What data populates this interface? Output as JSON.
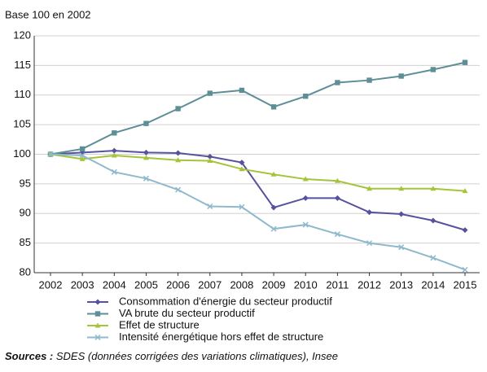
{
  "chart_data": {
    "type": "line",
    "subtitle": "Base 100 en 2002",
    "categories": [
      "2002",
      "2003",
      "2004",
      "2005",
      "2006",
      "2007",
      "2008",
      "2009",
      "2010",
      "2011",
      "2012",
      "2013",
      "2014",
      "2015"
    ],
    "series": [
      {
        "name": "Consommation d'énergie du secteur productif",
        "color": "#56529e",
        "marker": "diamond",
        "values": [
          100,
          100.3,
          100.6,
          100.3,
          100.2,
          99.6,
          98.6,
          91.0,
          92.6,
          92.6,
          90.2,
          89.9,
          88.8,
          87.2
        ]
      },
      {
        "name": "VA brute du secteur productif",
        "color": "#5e8e96",
        "marker": "square",
        "values": [
          100,
          100.9,
          103.6,
          105.2,
          107.7,
          110.3,
          110.8,
          108.0,
          109.8,
          112.1,
          112.5,
          113.2,
          114.3,
          115.5
        ]
      },
      {
        "name": "Effet de structure",
        "color": "#a5c43a",
        "marker": "triangle",
        "values": [
          100,
          99.2,
          99.8,
          99.4,
          99.0,
          98.9,
          97.5,
          96.6,
          95.8,
          95.5,
          94.2,
          94.2,
          94.2,
          93.8
        ]
      },
      {
        "name": "Intensité énergétique hors effet de structure",
        "color": "#8fb9cc",
        "marker": "x",
        "values": [
          100,
          99.8,
          97.0,
          95.9,
          94.0,
          91.2,
          91.1,
          87.4,
          88.1,
          86.5,
          85.0,
          84.3,
          82.5,
          80.5
        ]
      }
    ],
    "ylim": [
      80,
      120
    ],
    "yticks": [
      80,
      85,
      90,
      95,
      100,
      105,
      110,
      115,
      120
    ],
    "grid": true,
    "source_label": "Sources :",
    "source_text": "SDES (données corrigées des variations climatiques), Insee"
  }
}
